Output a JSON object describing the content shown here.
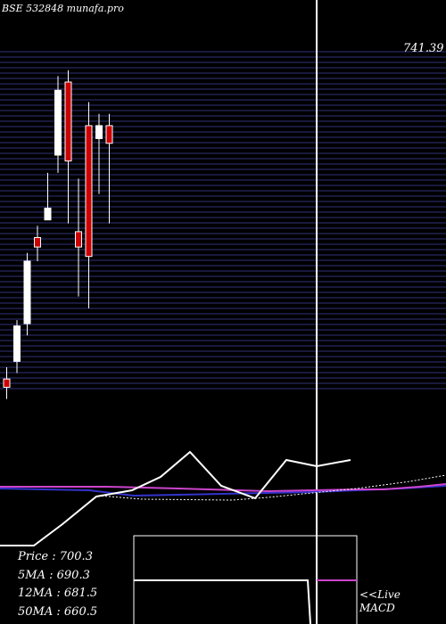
{
  "title": "BSE 532848 munafa.pro",
  "chart_data": {
    "type": "candlestick",
    "ylim": [
      450,
      745
    ],
    "price_label": "741.39",
    "candles": [
      {
        "open": 465,
        "close": 458,
        "high": 475,
        "low": 448
      },
      {
        "open": 480,
        "close": 510,
        "high": 515,
        "low": 470
      },
      {
        "open": 512,
        "close": 565,
        "high": 572,
        "low": 502
      },
      {
        "open": 585,
        "close": 577,
        "high": 595,
        "low": 565
      },
      {
        "open": 600,
        "close": 610,
        "high": 640,
        "low": 600
      },
      {
        "open": 655,
        "close": 710,
        "high": 722,
        "low": 640
      },
      {
        "open": 717,
        "close": 650,
        "high": 727,
        "low": 597
      },
      {
        "open": 590,
        "close": 577,
        "high": 635,
        "low": 535
      },
      {
        "open": 680,
        "close": 569,
        "high": 700,
        "low": 525
      },
      {
        "open": 669,
        "close": 680,
        "high": 690,
        "low": 622
      },
      {
        "open": 680,
        "close": 665,
        "high": 690,
        "low": 597
      }
    ]
  },
  "info": {
    "price_label": "Price",
    "price_value": ": 700.3",
    "ma5_label": "5MA",
    "ma5_value": ": 690.3",
    "ma12_label": "12MA",
    "ma12_value": ": 681.5",
    "ma50_label": "50MA",
    "ma50_value": ": 660.5"
  },
  "live": {
    "line1": "<<Live",
    "line2": "MACD"
  },
  "colors": {
    "background": "#000000",
    "grid": "#32327a",
    "up": "#ffffff",
    "down": "#cc0000",
    "ma_blue": "#3333cc",
    "ma_pink": "#cc44cc"
  }
}
